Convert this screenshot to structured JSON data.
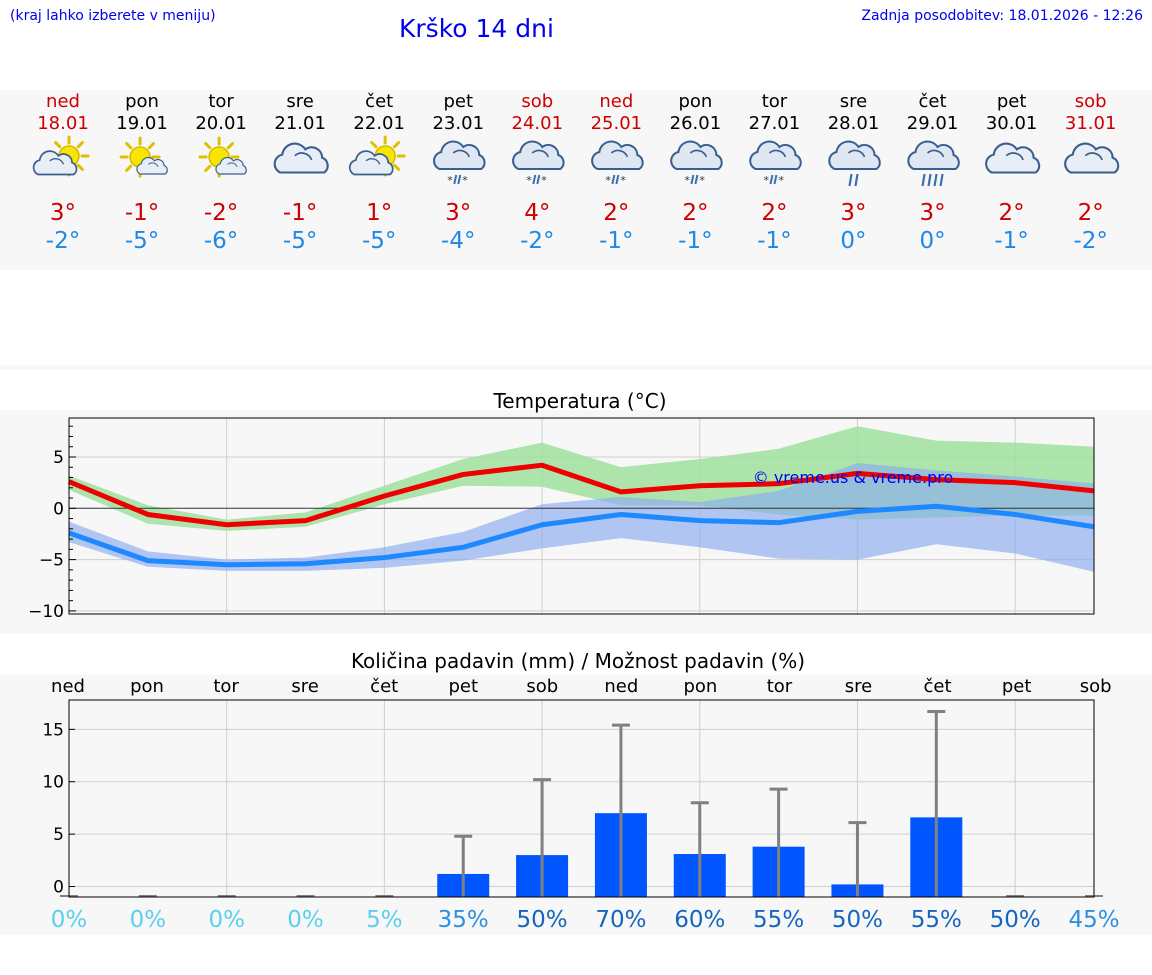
{
  "header": {
    "hint": "(kraj lahko izberete v meniju)",
    "title": "Krško 14 dni",
    "updated": "Zadnja posodobitev: 18.01.2026 - 12:26"
  },
  "days": [
    {
      "name": "ned",
      "date": "18.01",
      "weekend": true,
      "icon": "sun-cloud-icon",
      "hi": "3°",
      "lo": "-2°"
    },
    {
      "name": "pon",
      "date": "19.01",
      "weekend": false,
      "icon": "sun-small-cloud-icon",
      "hi": "-1°",
      "lo": "-5°"
    },
    {
      "name": "tor",
      "date": "20.01",
      "weekend": false,
      "icon": "sun-small-cloud-icon",
      "hi": "-2°",
      "lo": "-6°"
    },
    {
      "name": "sre",
      "date": "21.01",
      "weekend": false,
      "icon": "cloud-icon",
      "hi": "-1°",
      "lo": "-5°"
    },
    {
      "name": "čet",
      "date": "22.01",
      "weekend": false,
      "icon": "sun-cloud-icon",
      "hi": "1°",
      "lo": "-5°"
    },
    {
      "name": "pet",
      "date": "23.01",
      "weekend": false,
      "icon": "sleet-icon",
      "hi": "3°",
      "lo": "-4°"
    },
    {
      "name": "sob",
      "date": "24.01",
      "weekend": true,
      "icon": "sleet-icon",
      "hi": "4°",
      "lo": "-2°"
    },
    {
      "name": "ned",
      "date": "25.01",
      "weekend": true,
      "icon": "sleet-icon",
      "hi": "2°",
      "lo": "-1°"
    },
    {
      "name": "pon",
      "date": "26.01",
      "weekend": false,
      "icon": "sleet-icon",
      "hi": "2°",
      "lo": "-1°"
    },
    {
      "name": "tor",
      "date": "27.01",
      "weekend": false,
      "icon": "sleet-icon",
      "hi": "2°",
      "lo": "-1°"
    },
    {
      "name": "sre",
      "date": "28.01",
      "weekend": false,
      "icon": "rain-icon",
      "hi": "3°",
      "lo": "0°"
    },
    {
      "name": "čet",
      "date": "29.01",
      "weekend": false,
      "icon": "heavy-rain-icon",
      "hi": "3°",
      "lo": "0°"
    },
    {
      "name": "pet",
      "date": "30.01",
      "weekend": false,
      "icon": "cloud-icon",
      "hi": "2°",
      "lo": "-1°"
    },
    {
      "name": "sob",
      "date": "31.01",
      "weekend": true,
      "icon": "cloud-icon",
      "hi": "2°",
      "lo": "-2°"
    }
  ],
  "colors": {
    "weekend": "#cc0000",
    "weekday": "#000000",
    "hi": "#cc0000",
    "lo": "#1e88e5",
    "max_line": "#ee0000",
    "min_line": "#1e88ff",
    "max_band": "#9fe09f",
    "min_band": "#8aaaf0",
    "bar": "#0055ff",
    "whisker": "#808080"
  },
  "chart_data": [
    {
      "type": "line",
      "title": "Temperatura (°C)",
      "xlabel": "",
      "ylabel": "",
      "ylim": [
        -10.3,
        8.8
      ],
      "yticks": [
        5,
        0,
        -5,
        -10
      ],
      "ytick_labels": [
        "5",
        "0",
        "−5",
        "−10"
      ],
      "zero_line": true,
      "watermark": "© vreme.us & vreme.pro",
      "x": [
        0,
        1,
        2,
        3,
        4,
        5,
        6,
        7,
        8,
        9,
        10,
        11,
        12,
        13
      ],
      "series": [
        {
          "name": "max",
          "values": [
            2.6,
            -0.6,
            -1.6,
            -1.2,
            1.2,
            3.3,
            4.2,
            1.6,
            2.2,
            2.4,
            3.4,
            2.8,
            2.5,
            1.7
          ]
        },
        {
          "name": "min",
          "values": [
            -2.4,
            -5.1,
            -5.5,
            -5.4,
            -4.8,
            -3.8,
            -1.6,
            -0.6,
            -1.2,
            -1.4,
            -0.3,
            0.2,
            -0.6,
            -1.8
          ]
        }
      ],
      "bands": [
        {
          "name": "max-range",
          "low": [
            1.8,
            -1.5,
            -2.2,
            -1.8,
            0.4,
            2.2,
            2.1,
            0.3,
            0.3,
            -0.6,
            -1.1,
            -0.9,
            -0.7,
            -0.7
          ],
          "high": [
            3.2,
            0.3,
            -1.1,
            -0.4,
            2.2,
            4.8,
            6.4,
            4.0,
            4.8,
            5.8,
            8.0,
            6.6,
            6.4,
            6.0
          ]
        },
        {
          "name": "min-range",
          "low": [
            -3.3,
            -5.7,
            -6.1,
            -6.1,
            -5.8,
            -5.1,
            -3.9,
            -2.9,
            -3.8,
            -4.9,
            -5.0,
            -3.5,
            -4.4,
            -6.2
          ],
          "high": [
            -1.3,
            -4.2,
            -5.0,
            -4.8,
            -3.8,
            -2.3,
            0.4,
            1.1,
            0.6,
            1.7,
            4.4,
            3.7,
            3.1,
            2.4
          ]
        }
      ]
    },
    {
      "type": "bar",
      "title": "Količina padavin (mm) / Možnost padavin (%)",
      "xlabel": "",
      "ylabel": "",
      "ylim": [
        -1.0,
        17.8
      ],
      "yticks": [
        15,
        10,
        5,
        0
      ],
      "categories": [
        "ned",
        "pon",
        "tor",
        "sre",
        "čet",
        "pet",
        "sob",
        "ned",
        "pon",
        "tor",
        "sre",
        "čet",
        "pet",
        "sob"
      ],
      "values": [
        0,
        0,
        0,
        0,
        0,
        1.2,
        3.0,
        7.0,
        3.1,
        3.8,
        0.2,
        6.6,
        0,
        0
      ],
      "error_high": [
        0,
        0,
        0,
        0,
        0,
        4.8,
        10.2,
        15.4,
        8.0,
        9.3,
        6.1,
        16.7,
        0,
        0
      ],
      "probability": [
        "0%",
        "0%",
        "0%",
        "0%",
        "5%",
        "35%",
        "50%",
        "70%",
        "60%",
        "55%",
        "50%",
        "55%",
        "50%",
        "45%"
      ],
      "probability_values": [
        0,
        0,
        0,
        0,
        5,
        35,
        50,
        70,
        60,
        55,
        50,
        55,
        50,
        45
      ]
    }
  ]
}
